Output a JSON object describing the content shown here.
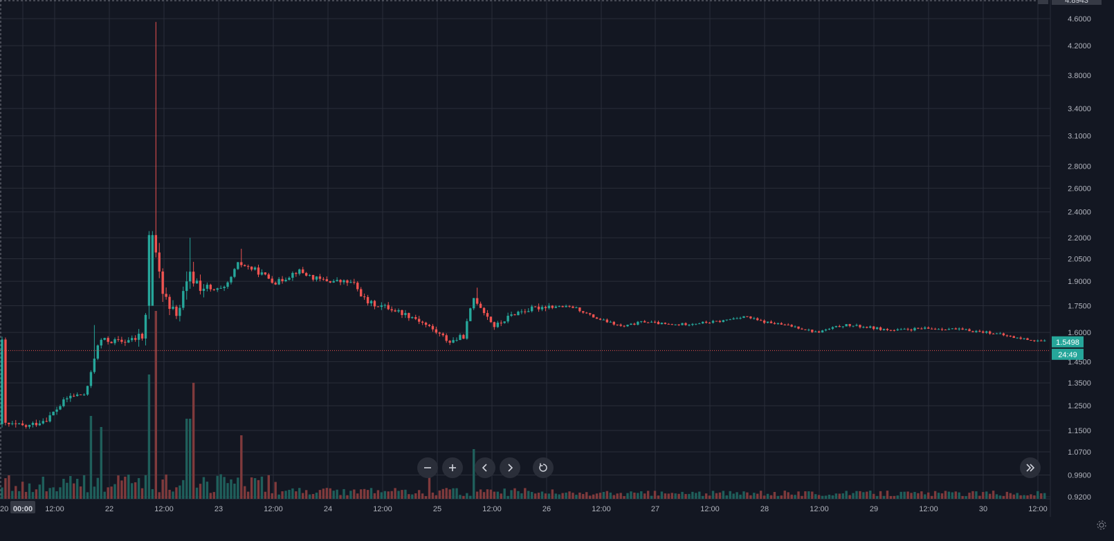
{
  "chart_data": {
    "type": "candlestick",
    "price_scale": {
      "tick_labels": [
        "4.6000",
        "4.2000",
        "3.8000",
        "3.4000",
        "3.1000",
        "2.8000",
        "2.6000",
        "2.4000",
        "2.2000",
        "2.0500",
        "1.9000",
        "1.7500",
        "1.6000",
        "1.4500",
        "1.3500",
        "1.2500",
        "1.1500",
        "1.0700",
        "0.9900",
        "0.9200"
      ],
      "top_label_partial": "4.8943",
      "range": [
        0.92,
        4.89
      ],
      "scale": "log"
    },
    "time_scale": {
      "tick_labels": [
        "20",
        "00:00",
        "12:00",
        "22",
        "12:00",
        "23",
        "12:00",
        "24",
        "12:00",
        "25",
        "12:00",
        "26",
        "12:00",
        "27",
        "12:00",
        "28",
        "12:00",
        "29",
        "12:00",
        "30",
        "12:00"
      ],
      "highlighted_label": "00:00"
    },
    "last_price": {
      "value": "1.5498",
      "countdown": "24:49",
      "color": "#26a69a"
    },
    "price_line": {
      "value": 1.505,
      "color": "#ef5350"
    },
    "colors": {
      "up": "#26a69a",
      "down": "#ef5350",
      "up_volume": "#1f5f5b",
      "down_volume": "#7f3a3c",
      "background": "#131722",
      "grid": "#2a2e39"
    },
    "grid": true,
    "candles": [],
    "volume": []
  },
  "nav": {
    "zoom_out_icon": "minus-icon",
    "zoom_in_icon": "plus-icon",
    "scroll_left_icon": "chevron-left-icon",
    "scroll_right_icon": "chevron-right-icon",
    "reset_icon": "reset-icon",
    "go_to_realtime_icon": "double-chevron-right-icon",
    "settings_icon": "gear-icon"
  }
}
